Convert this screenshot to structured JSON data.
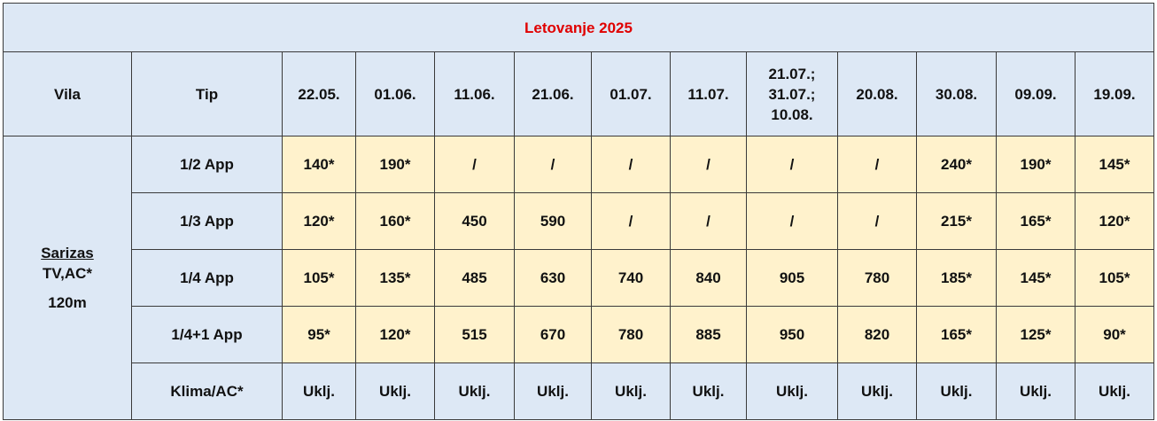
{
  "header": {
    "title": "Letovanje 2025"
  },
  "table": {
    "columns": [
      "Vila",
      "Tip",
      [
        "22.05."
      ],
      [
        "01.06."
      ],
      [
        "11.06."
      ],
      [
        "21.06."
      ],
      [
        "01.07."
      ],
      [
        "11.07."
      ],
      [
        "21.07.;",
        "31.07.;",
        "10.08."
      ],
      [
        "20.08."
      ],
      [
        "30.08."
      ],
      [
        "09.09."
      ],
      [
        "19.09."
      ]
    ],
    "villa": {
      "name": "Sarizas",
      "lines": [
        "TV,AC*",
        "120m"
      ]
    },
    "rows": [
      [
        "1/2 App",
        "140*",
        "190*",
        "/",
        "/",
        "/",
        "/",
        "/",
        "/",
        "240*",
        "190*",
        "145*"
      ],
      [
        "1/3 App",
        "120*",
        "160*",
        "450",
        "590",
        "/",
        "/",
        "/",
        "/",
        "215*",
        "165*",
        "120*"
      ],
      [
        "1/4 App",
        "105*",
        "135*",
        "485",
        "630",
        "740",
        "840",
        "905",
        "780",
        "185*",
        "145*",
        "105*"
      ],
      [
        "1/4+1 App",
        "95*",
        "120*",
        "515",
        "670",
        "780",
        "885",
        "950",
        "820",
        "165*",
        "125*",
        "90*"
      ],
      [
        "Klima/AC*",
        "Uklj.",
        "Uklj.",
        "Uklj.",
        "Uklj.",
        "Uklj.",
        "Uklj.",
        "Uklj.",
        "Uklj.",
        "Uklj.",
        "Uklj.",
        "Uklj."
      ]
    ]
  }
}
